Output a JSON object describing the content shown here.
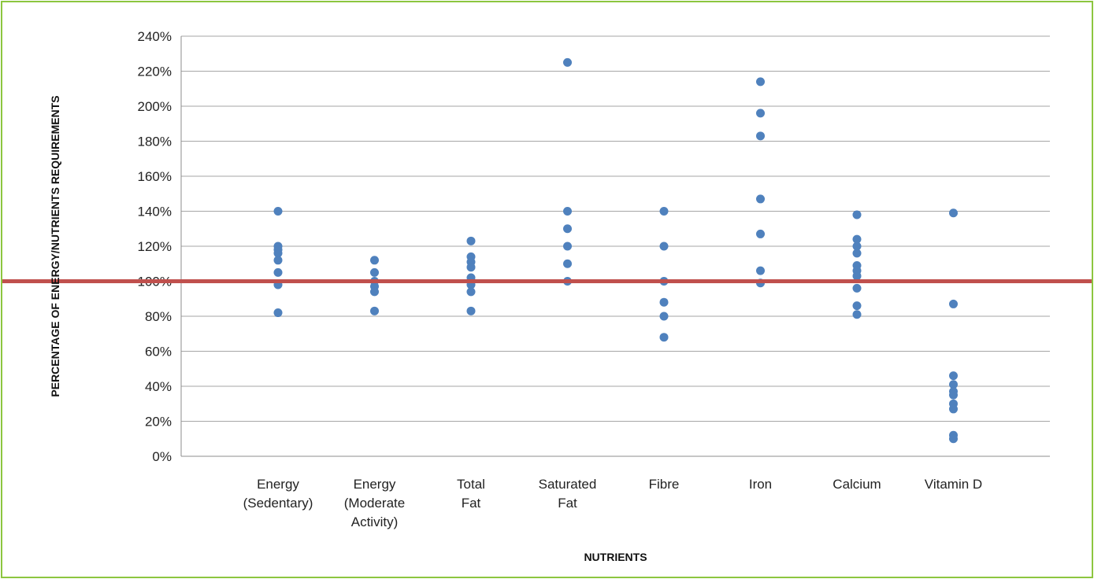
{
  "colors": {
    "frame_border": "#8cc63f",
    "points": "#4f81bd",
    "reference_line": "#c0504d",
    "gridlines": "#a6a6a6"
  },
  "chart_data": {
    "type": "scatter",
    "title": "",
    "xlabel": "NUTRIENTS",
    "ylabel": "PERCENTAGE OF ENERGY/NUTRIENTS REQUIREMENTS",
    "ylim": [
      0,
      240
    ],
    "y_unit": "%",
    "y_ticks": [
      "0%",
      "20%",
      "40%",
      "60%",
      "80%",
      "100%",
      "120%",
      "140%",
      "160%",
      "180%",
      "200%",
      "220%",
      "240%"
    ],
    "grid": true,
    "reference_line": 100,
    "categories": [
      {
        "label_lines": [
          "Energy",
          "(Sedentary)"
        ],
        "values": [
          140,
          120,
          118,
          116,
          112,
          105,
          98,
          82
        ]
      },
      {
        "label_lines": [
          "Energy",
          "(Moderate",
          "Activity)"
        ],
        "values": [
          112,
          105,
          100,
          97,
          94,
          83
        ]
      },
      {
        "label_lines": [
          "Total",
          "Fat"
        ],
        "values": [
          123,
          114,
          111,
          108,
          102,
          98,
          94,
          83
        ]
      },
      {
        "label_lines": [
          "Saturated",
          "Fat"
        ],
        "values": [
          225,
          140,
          130,
          120,
          110,
          100
        ]
      },
      {
        "label_lines": [
          "Fibre"
        ],
        "values": [
          140,
          120,
          100,
          88,
          80,
          68
        ]
      },
      {
        "label_lines": [
          "Iron"
        ],
        "values": [
          214,
          196,
          183,
          147,
          127,
          106,
          99
        ]
      },
      {
        "label_lines": [
          "Calcium"
        ],
        "values": [
          138,
          124,
          120,
          116,
          109,
          106,
          103,
          96,
          86,
          81
        ]
      },
      {
        "label_lines": [
          "Vitamin D"
        ],
        "values": [
          139,
          87,
          46,
          41,
          37,
          35,
          30,
          27,
          12,
          10
        ]
      }
    ]
  }
}
